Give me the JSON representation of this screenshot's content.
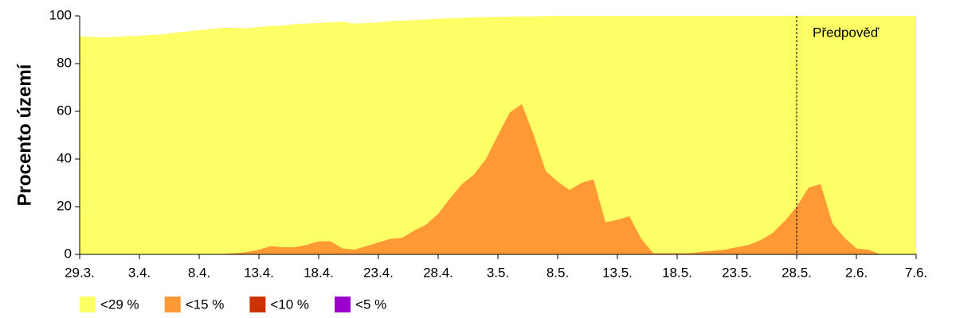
{
  "chart_data": {
    "type": "area",
    "y_label": "Procento území",
    "categories": [
      "29.3.",
      null,
      null,
      null,
      null,
      "3.4.",
      null,
      null,
      null,
      null,
      "8.4.",
      null,
      null,
      null,
      null,
      "13.4.",
      null,
      null,
      null,
      null,
      "18.4.",
      null,
      null,
      null,
      null,
      "23.4.",
      null,
      null,
      null,
      null,
      "28.4.",
      null,
      null,
      null,
      null,
      "3.5.",
      null,
      null,
      null,
      null,
      "8.5.",
      null,
      null,
      null,
      null,
      "13.5.",
      null,
      null,
      null,
      null,
      "18.5.",
      null,
      null,
      null,
      null,
      "23.5.",
      null,
      null,
      null,
      null,
      "28.5.",
      null,
      null,
      null,
      null,
      "2.6.",
      null,
      null,
      null,
      null,
      "7.6."
    ],
    "series": [
      {
        "name": "<29 %",
        "color": "#ffff66",
        "values": [
          91.5,
          91.2,
          91,
          91.2,
          91.5,
          91.7,
          92,
          92.2,
          93,
          93.5,
          94,
          94.5,
          95,
          95,
          94.8,
          95.3,
          95.8,
          96,
          96.5,
          96.8,
          97,
          97.3,
          97.5,
          96.8,
          97,
          97.2,
          97.8,
          98,
          98.3,
          98.5,
          98.8,
          99,
          99.2,
          99.4,
          99.5,
          99.6,
          99.7,
          99.8,
          99.8,
          99.9,
          100,
          100,
          100,
          100,
          100,
          100,
          100,
          100,
          100,
          100,
          100,
          100,
          100,
          100,
          100,
          100,
          100,
          100,
          100,
          100,
          100,
          100,
          100,
          100,
          100,
          100,
          100,
          100,
          100,
          100,
          100
        ]
      },
      {
        "name": "<15 %",
        "color": "#ff9933",
        "values": [
          0,
          0,
          0,
          0,
          0,
          0,
          0,
          0,
          0,
          0,
          0,
          0,
          0.2,
          0.5,
          1,
          2,
          3.5,
          3,
          3,
          4,
          5.5,
          5.5,
          2.5,
          2,
          3.5,
          5,
          6.5,
          7,
          10,
          12.5,
          17,
          23.5,
          29.5,
          33.5,
          40,
          50,
          59.5,
          63,
          50,
          35,
          30.5,
          27,
          30,
          31.5,
          13.5,
          14.5,
          16,
          6.5,
          0.5,
          0.5,
          0.5,
          0.5,
          1,
          1.5,
          2,
          3,
          4,
          6,
          9,
          14,
          20,
          28,
          29.5,
          13,
          7,
          2.5,
          2,
          0,
          0,
          0,
          0
        ]
      },
      {
        "name": "<10 %",
        "color": "#cc3300"
      },
      {
        "name": "<5 %",
        "color": "#9900cc"
      }
    ],
    "ylim": [
      0,
      100
    ],
    "yticks": [
      0,
      20,
      40,
      60,
      80,
      100
    ],
    "forecast_from": "28.5.",
    "forecast_label": "Předpověď"
  }
}
